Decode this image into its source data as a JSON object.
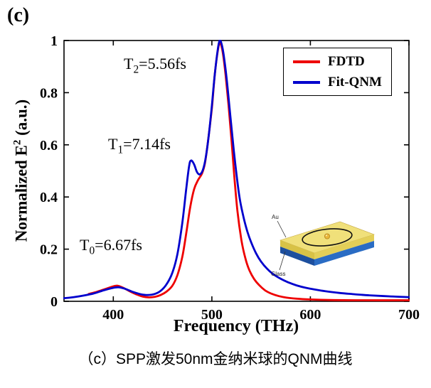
{
  "panel_label": "(c)",
  "caption": "（c）SPP激发50nm金纳米球的QNM曲线",
  "inset": {
    "au_label": "Au",
    "glass_label": "Glass"
  },
  "chart_data": {
    "type": "line",
    "title": "",
    "xlabel": "Frequency (THz)",
    "ylabel": "Normalized E² (a.u.)",
    "ylabel_parts": {
      "pre": "Normalized E",
      "sup": "2",
      "post": " (a.u.)"
    },
    "xlim": [
      350,
      700
    ],
    "ylim": [
      0,
      1
    ],
    "xticks": [
      400,
      500,
      600,
      700
    ],
    "xtick_labels": [
      "400",
      "500",
      "600",
      "700"
    ],
    "yticks": [
      0,
      0.2,
      0.4,
      0.6,
      0.8,
      1
    ],
    "ytick_labels": [
      "0",
      "0.2",
      "0.4",
      "0.6",
      "0.8",
      "1"
    ],
    "grid": false,
    "legend_position": "top-right",
    "annotations": [
      {
        "pre": "T",
        "sub": "2",
        "post": "=5.56fs",
        "x": 464,
        "y": 0.91
      },
      {
        "pre": "T",
        "sub": "1",
        "post": "=7.14fs",
        "x": 445,
        "y": 0.6
      },
      {
        "pre": "T",
        "sub": "0",
        "post": "=6.67fs",
        "x": 415,
        "y": 0.21
      }
    ],
    "series": [
      {
        "name": "FDTD",
        "color": "#ee0000",
        "x": [
          375,
          383,
          391,
          398,
          404,
          410,
          417,
          424,
          430,
          436,
          442,
          448,
          454,
          460,
          465,
          470,
          474,
          478,
          482,
          486,
          490,
          493,
          496,
          500,
          503,
          506,
          508,
          510,
          512,
          514,
          517,
          520,
          523,
          526,
          530,
          534,
          538,
          543,
          548,
          554,
          560,
          568,
          576,
          586,
          600,
          620,
          650,
          700
        ],
        "y": [
          0.028,
          0.036,
          0.046,
          0.055,
          0.06,
          0.052,
          0.038,
          0.026,
          0.018,
          0.015,
          0.017,
          0.024,
          0.037,
          0.06,
          0.1,
          0.17,
          0.26,
          0.36,
          0.43,
          0.465,
          0.49,
          0.53,
          0.61,
          0.74,
          0.87,
          0.96,
          0.99,
          0.975,
          0.93,
          0.865,
          0.75,
          0.615,
          0.47,
          0.345,
          0.235,
          0.165,
          0.12,
          0.085,
          0.062,
          0.042,
          0.03,
          0.02,
          0.014,
          0.01,
          0.007,
          0.005,
          0.004,
          0.004
        ]
      },
      {
        "name": "Fit-QNM",
        "color": "#0000cd",
        "x": [
          350,
          360,
          370,
          380,
          390,
          398,
          405,
          412,
          420,
          428,
          435,
          442,
          448,
          454,
          460,
          465,
          470,
          474,
          477,
          479,
          482,
          485,
          488,
          491,
          494,
          497,
          500,
          503,
          506,
          508,
          510,
          512,
          515,
          518,
          521,
          524,
          528,
          532,
          536,
          540,
          545,
          550,
          556,
          562,
          570,
          578,
          586,
          595,
          605,
          615,
          630,
          645,
          660,
          680,
          700
        ],
        "y": [
          0.012,
          0.016,
          0.022,
          0.03,
          0.042,
          0.05,
          0.054,
          0.048,
          0.036,
          0.027,
          0.024,
          0.028,
          0.04,
          0.065,
          0.11,
          0.18,
          0.3,
          0.43,
          0.52,
          0.54,
          0.525,
          0.495,
          0.487,
          0.505,
          0.555,
          0.64,
          0.75,
          0.87,
          0.965,
          1.0,
          0.985,
          0.945,
          0.855,
          0.74,
          0.625,
          0.52,
          0.4,
          0.325,
          0.268,
          0.225,
          0.183,
          0.152,
          0.125,
          0.105,
          0.086,
          0.072,
          0.061,
          0.052,
          0.045,
          0.039,
          0.032,
          0.027,
          0.023,
          0.019,
          0.016
        ]
      }
    ]
  }
}
